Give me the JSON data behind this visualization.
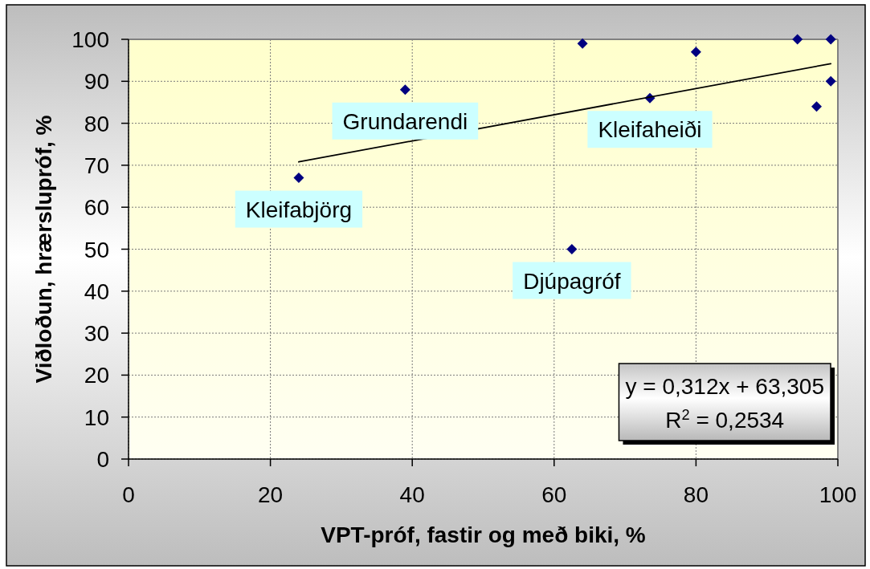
{
  "chart_data": {
    "type": "scatter",
    "xlabel": "VPT-próf, fastir og með biki, %",
    "ylabel": "Viðloðun, hrærslupróf, %",
    "xlim": [
      0,
      100
    ],
    "xticks": [
      0,
      20,
      40,
      60,
      80,
      100
    ],
    "ylim": [
      0,
      100
    ],
    "yticks": [
      0,
      10,
      20,
      30,
      40,
      50,
      60,
      70,
      80,
      90,
      100
    ],
    "grid": true,
    "series": [
      {
        "color": "#000080",
        "marker": "diamond",
        "x": [
          24,
          39,
          64,
          80,
          94.3,
          99,
          99,
          97,
          73.5,
          62.5
        ],
        "values": [
          67,
          88,
          99,
          97,
          100,
          100,
          90,
          84,
          86,
          50
        ]
      },
      {
        "type": "line",
        "color": "#000000",
        "x": [
          24,
          99
        ],
        "values": [
          70.8,
          94.2
        ]
      }
    ],
    "annotations": [
      {
        "text": "Kleifabjörg",
        "x": 24,
        "y": 67
      },
      {
        "text": "Grundarendi",
        "x": 39,
        "y": 88
      },
      {
        "text": "Kleifaheiði",
        "x": 73.5,
        "y": 86
      },
      {
        "text": "Djúpagróf",
        "x": 62.5,
        "y": 50
      },
      "y = 0,312x + 63,305",
      "R$^{2}$ = 0,2534"
    ]
  }
}
